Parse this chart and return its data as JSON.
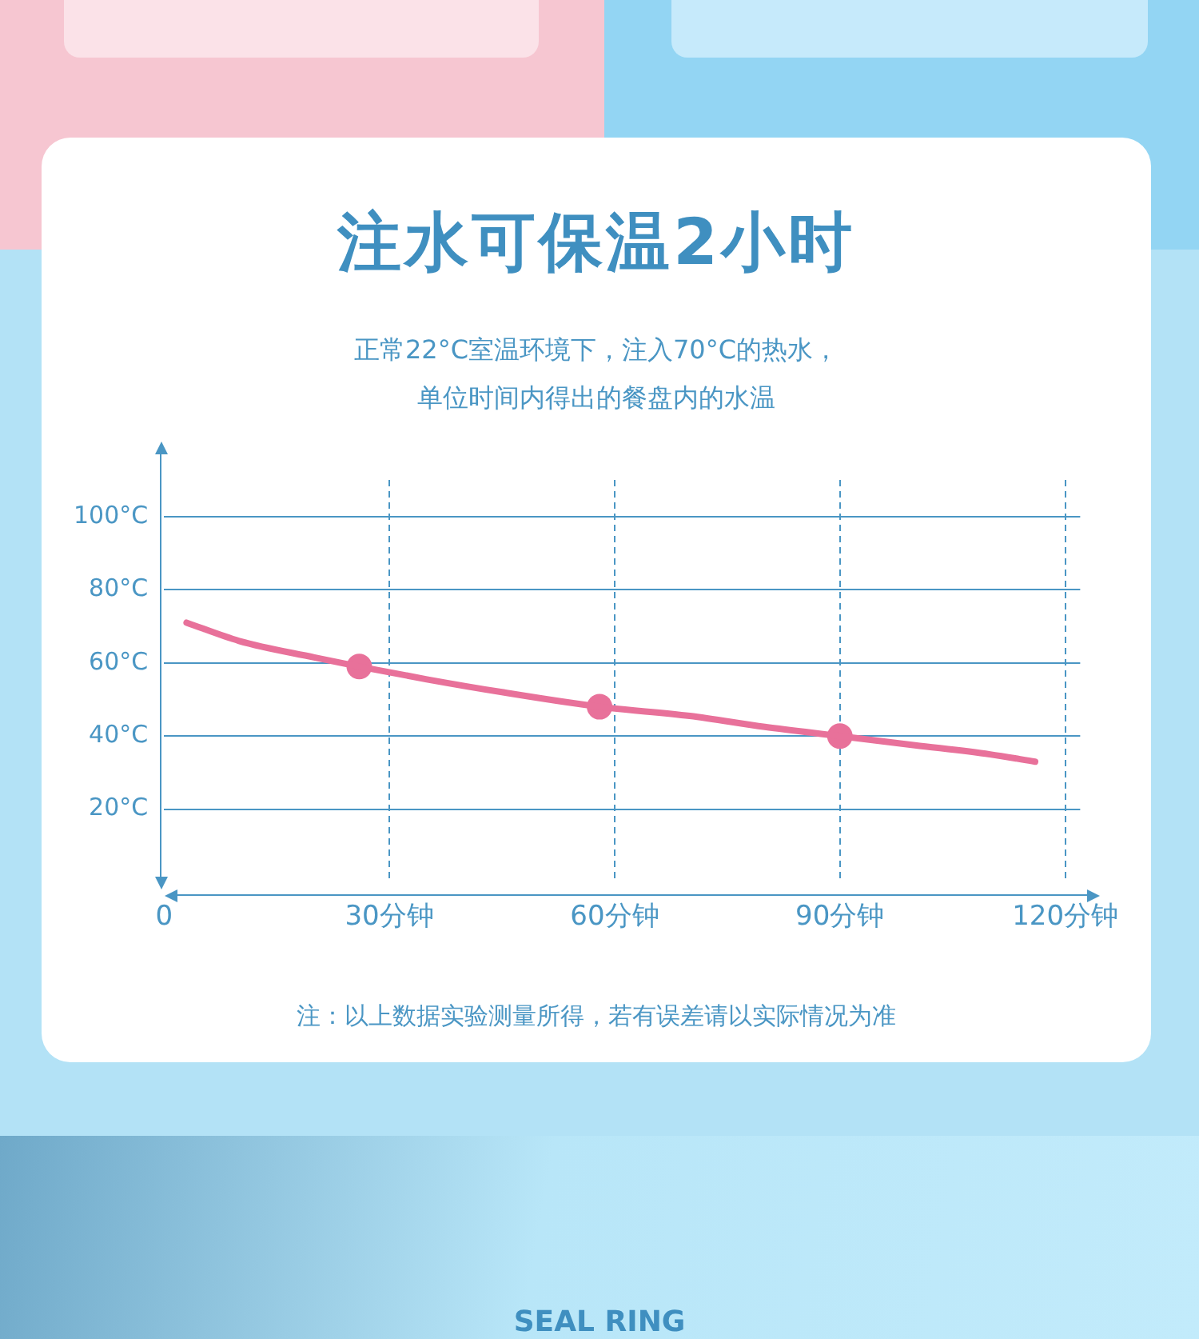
{
  "chart_data": {
    "type": "line",
    "title": "注水可保温2小时",
    "subtitle": "正常22°C室温环境下，注入70°C的热水，单位时间内得出的餐盘内的水温",
    "annotations": [
      "注：以上数据实验测量所得，若有误差请以实际情况为准",
      "SEAL RING"
    ],
    "series": [
      {
        "color": "#e8719a",
        "marker": "none",
        "x": [
          3,
          10,
          20,
          26,
          35,
          45,
          58,
          70,
          80,
          90,
          100,
          110,
          116
        ],
        "values": [
          71,
          66,
          61.5,
          59,
          55.5,
          52,
          48,
          45.5,
          42.5,
          40,
          37.5,
          35,
          33
        ]
      },
      {
        "type": "scatter",
        "color": "#e8719a",
        "marker": "circle",
        "x": [
          26,
          58,
          90
        ],
        "values": [
          59,
          48,
          40
        ]
      }
    ],
    "xlim": [
      0,
      122
    ],
    "xticks": [
      {
        "value": 0,
        "label": "0"
      },
      {
        "value": 30,
        "label": "30分钟"
      },
      {
        "value": 60,
        "label": "60分钟"
      },
      {
        "value": 90,
        "label": "90分钟"
      },
      {
        "value": 120,
        "label": "120分钟"
      }
    ],
    "ylim": [
      0,
      110
    ],
    "yticks": [
      {
        "value": 20,
        "label": "20°C"
      },
      {
        "value": 40,
        "label": "40°C"
      },
      {
        "value": 60,
        "label": "60°C"
      },
      {
        "value": 80,
        "label": "80°C"
      },
      {
        "value": 100,
        "label": "100°C"
      }
    ],
    "grid": true,
    "legend": false
  }
}
